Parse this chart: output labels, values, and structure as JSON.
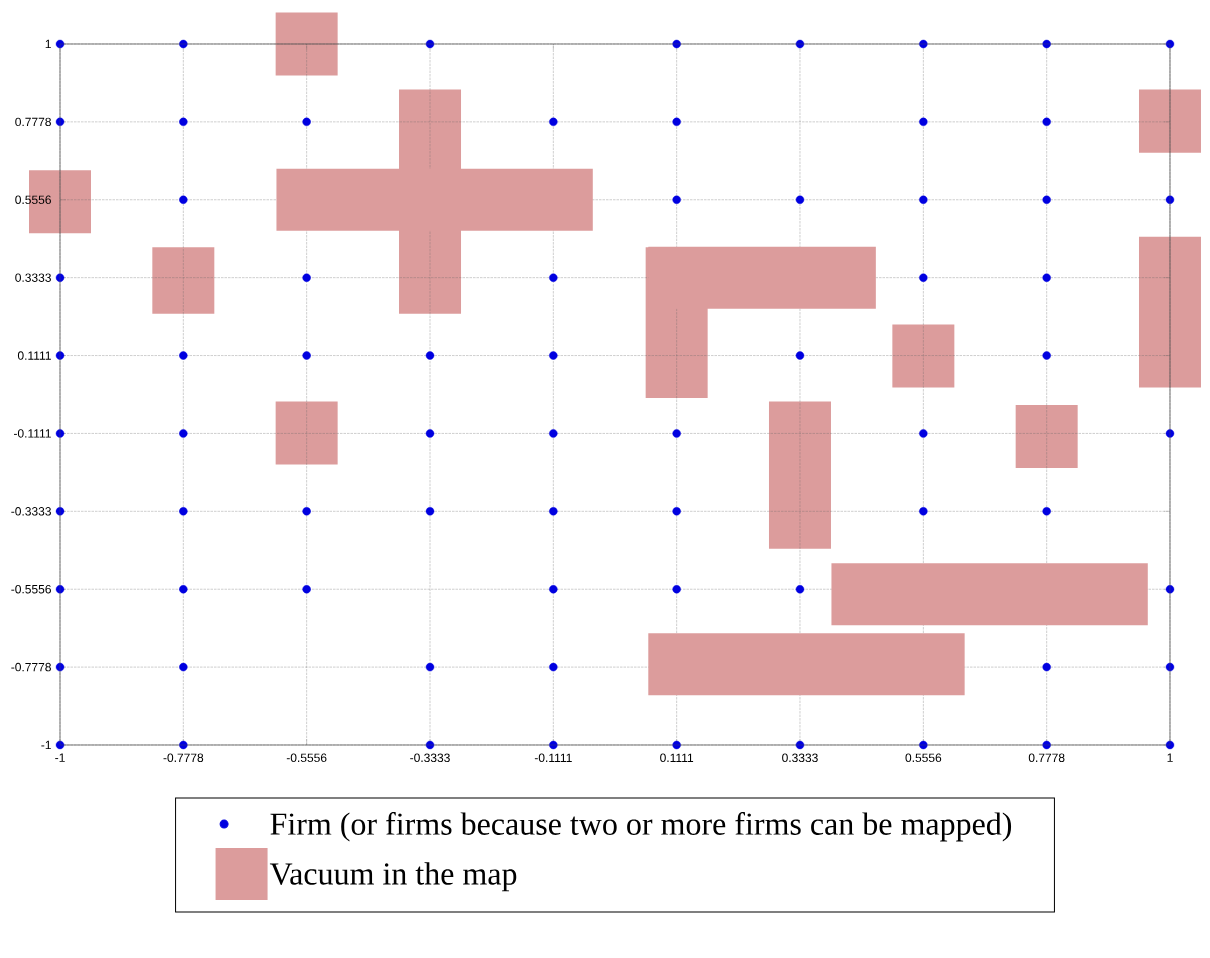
{
  "chart_data": [
    {
      "type": "scatter",
      "legend": "bottom",
      "grid": true,
      "xlim": [
        -1,
        1
      ],
      "ylim": [
        -1,
        1
      ],
      "xticks": [
        -1,
        -0.7778,
        -0.5556,
        -0.3333,
        -0.1111,
        0.1111,
        0.3333,
        0.5556,
        0.7778,
        1
      ],
      "yticks": [
        -1,
        -0.7778,
        -0.5556,
        -0.3333,
        -0.1111,
        0.1111,
        0.3333,
        0.5556,
        0.7778,
        1
      ],
      "series": [
        {
          "name": "Vacuum in the map",
          "type": "bar",
          "color": "#dc9c9c",
          "x": [
            -1,
            -0.7778,
            -0.5556,
            -0.3333,
            0.1111,
            0.3333,
            0.5556,
            0.7778,
            1
          ],
          "base": [
            0.46,
            0.23,
            0.91,
            0.23,
            -0.01,
            -0.44,
            0.02,
            -0.21,
            0.69
          ],
          "values": [
            0.18,
            0.19,
            0.18,
            0.64,
            0.43,
            0.42,
            0.18,
            0.18,
            0.18
          ]
        },
        {
          "type": "bar",
          "color": "#dc9c9c",
          "x": [
            -0.5556,
            1
          ],
          "base": [
            -0.2,
            0.02
          ],
          "values": [
            0.18,
            0.43
          ]
        },
        {
          "name": "Firm (or firms because two or more firms can be mapped)",
          "type": "scatter",
          "color": "#0000e0",
          "marker": "circle",
          "x": [
            -1,
            -0.7778,
            -0.3333,
            0.1111,
            0.3333,
            0.5556,
            0.7778,
            1,
            -1,
            -0.7778,
            -0.5556,
            -0.1111,
            0.1111,
            0.5556,
            0.7778,
            -0.7778,
            0.1111,
            0.3333,
            0.5556,
            0.7778,
            1,
            -1,
            -0.5556,
            -0.1111,
            0.5556,
            0.7778,
            -1,
            -0.7778,
            -0.5556,
            -0.3333,
            -0.1111,
            0.3333,
            0.7778,
            -1,
            -0.7778,
            -0.3333,
            -0.1111,
            0.1111,
            0.5556,
            1,
            -1,
            -0.7778,
            -0.5556,
            -0.3333,
            -0.1111,
            0.1111,
            0.5556,
            0.7778,
            -1,
            -0.7778,
            -0.5556,
            -0.1111,
            0.1111,
            0.3333,
            1,
            -1,
            -0.7778,
            -0.3333,
            -0.1111,
            0.7778,
            1,
            -1,
            -0.7778,
            -0.3333,
            -0.1111,
            0.1111,
            0.3333,
            0.5556,
            0.7778,
            1
          ],
          "values": [
            1,
            1,
            1,
            1,
            1,
            1,
            1,
            1,
            0.7778,
            0.7778,
            0.7778,
            0.7778,
            0.7778,
            0.7778,
            0.7778,
            0.5556,
            0.5556,
            0.5556,
            0.5556,
            0.5556,
            0.5556,
            0.3333,
            0.3333,
            0.3333,
            0.3333,
            0.3333,
            0.1111,
            0.1111,
            0.1111,
            0.1111,
            0.1111,
            0.1111,
            0.1111,
            -0.1111,
            -0.1111,
            -0.1111,
            -0.1111,
            -0.1111,
            -0.1111,
            -0.1111,
            -0.3333,
            -0.3333,
            -0.3333,
            -0.3333,
            -0.3333,
            -0.3333,
            -0.3333,
            -0.3333,
            -0.5556,
            -0.5556,
            -0.5556,
            -0.5556,
            -0.5556,
            -0.5556,
            -0.5556,
            -0.7778,
            -0.7778,
            -0.7778,
            -0.7778,
            -0.7778,
            -0.7778,
            -1,
            -1,
            -1,
            -1,
            -1,
            -1,
            -1,
            -1,
            -1
          ]
        }
      ]
    },
    {
      "type": "bar",
      "orientation": "horizontal",
      "tick_labels": false,
      "xlim": [
        -1,
        1
      ],
      "ylim": [
        -1,
        1
      ],
      "series": [
        {
          "color": "#dc9c9c",
          "x": [
            -0.77,
            -0.57,
            0.3333,
            0.5556
          ],
          "base": [
            0.06,
            0.39,
            0.06,
            -0.61
          ],
          "values": [
            0.57,
            0.57,
            0.41,
            0.57
          ]
        }
      ]
    }
  ]
}
